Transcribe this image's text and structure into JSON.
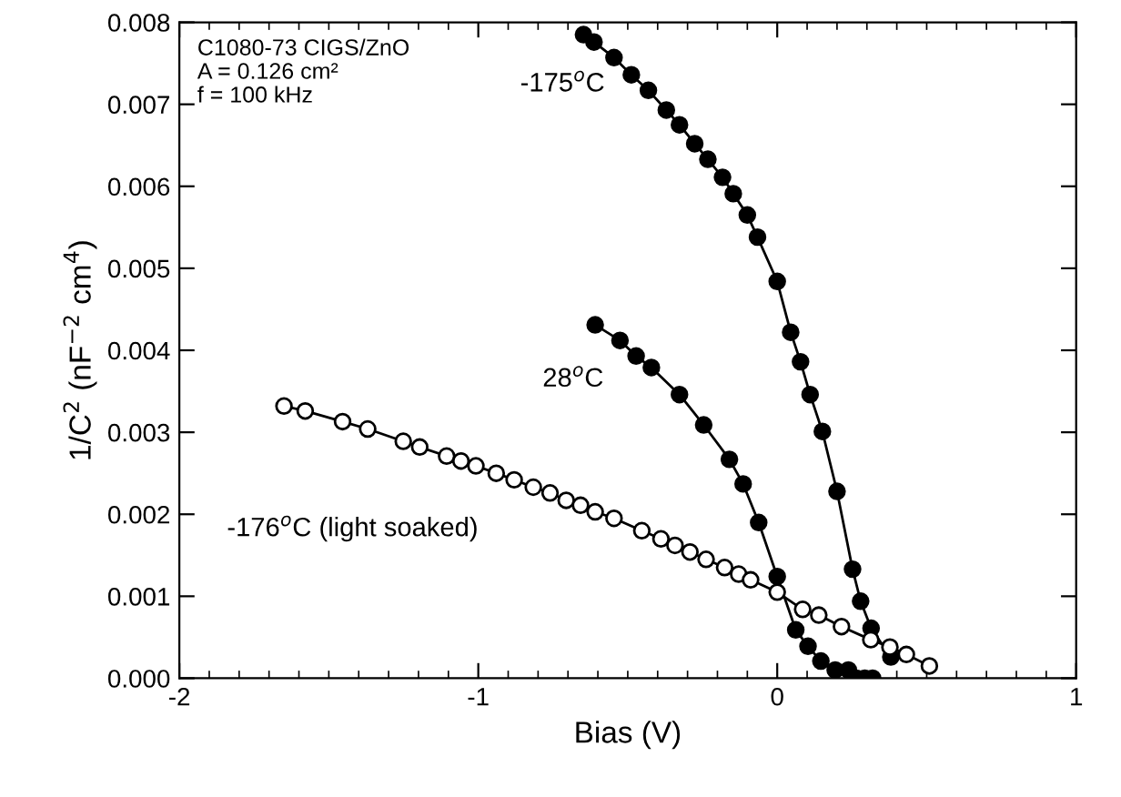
{
  "chart_data": {
    "type": "line",
    "xlabel": "Bias (V)",
    "ylabel": "1/C$^{2}$ (nF$^{−2}$ cm$^{4}$)",
    "xlim": [
      -2,
      1
    ],
    "xticks": [
      -2,
      -1,
      0,
      1
    ],
    "ylim": [
      0,
      0.008
    ],
    "yticks": [
      {
        "value": 0,
        "label": "0.000"
      },
      {
        "value": 0.001,
        "label": "0.001"
      },
      {
        "value": 0.002,
        "label": "0.002"
      },
      {
        "value": 0.003,
        "label": "0.003"
      },
      {
        "value": 0.004,
        "label": "0.004"
      },
      {
        "value": 0.005,
        "label": "0.005"
      },
      {
        "value": 0.006,
        "label": "0.006"
      },
      {
        "value": 0.007,
        "label": "0.007"
      },
      {
        "value": 0.008,
        "label": "0.008"
      }
    ],
    "grid": false,
    "legend": false,
    "marker": "circle",
    "line_style": "solid",
    "series": [
      {
        "color": "#000000",
        "x": [
          -0.648,
          -0.613,
          -0.546,
          -0.488,
          -0.431,
          -0.371,
          -0.327,
          -0.276,
          -0.232,
          -0.183,
          -0.147,
          -0.1,
          -0.066,
          0.0,
          0.045,
          0.078,
          0.11,
          0.151,
          0.2,
          0.252,
          0.279,
          0.314,
          0.38
        ],
        "values": [
          0.00785,
          0.00776,
          0.00757,
          0.00736,
          0.00717,
          0.00693,
          0.00675,
          0.00652,
          0.00633,
          0.00611,
          0.00591,
          0.00565,
          0.00538,
          0.00484,
          0.00422,
          0.00386,
          0.00346,
          0.00301,
          0.00228,
          0.00133,
          0.00094,
          0.00061,
          0.00026
        ]
      },
      {
        "color": "#000000",
        "x": [
          -0.609,
          -0.526,
          -0.472,
          -0.421,
          -0.327,
          -0.246,
          -0.16,
          -0.114,
          -0.062,
          0.0,
          0.062,
          0.103,
          0.146,
          0.194,
          0.238,
          0.265,
          0.293,
          0.319
        ],
        "values": [
          0.00431,
          0.00412,
          0.00393,
          0.00379,
          0.00346,
          0.00309,
          0.00267,
          0.00237,
          0.0019,
          0.00124,
          0.00059,
          0.00039,
          0.00021,
          0.0001,
          0.0001,
          0.0,
          0.0,
          0.0
        ]
      },
      {
        "color": "#ffffff",
        "x": [
          -1.65,
          -1.579,
          -1.454,
          -1.37,
          -1.251,
          -1.196,
          -1.106,
          -1.058,
          -1.008,
          -0.94,
          -0.88,
          -0.816,
          -0.76,
          -0.706,
          -0.658,
          -0.609,
          -0.546,
          -0.453,
          -0.389,
          -0.342,
          -0.292,
          -0.238,
          -0.176,
          -0.129,
          -0.089,
          0.0,
          0.085,
          0.139,
          0.215,
          0.313,
          0.377,
          0.432,
          0.509
        ],
        "values": [
          0.00332,
          0.00326,
          0.00313,
          0.00304,
          0.00289,
          0.00282,
          0.00271,
          0.00265,
          0.00259,
          0.0025,
          0.00242,
          0.00233,
          0.00226,
          0.00217,
          0.00211,
          0.00203,
          0.00195,
          0.0018,
          0.0017,
          0.00162,
          0.00154,
          0.00145,
          0.00135,
          0.00127,
          0.0012,
          0.00105,
          0.00084,
          0.00077,
          0.00063,
          0.00047,
          0.00038,
          0.00029,
          0.00015
        ]
      }
    ],
    "annotations": [
      "C1080-73 CIGS/ZnO",
      "A = 0.126 cm²",
      "f = 100 kHz",
      "-175$^{o}$C",
      "28$^{o}$C",
      "-176$^{o}$C (light soaked)"
    ]
  }
}
